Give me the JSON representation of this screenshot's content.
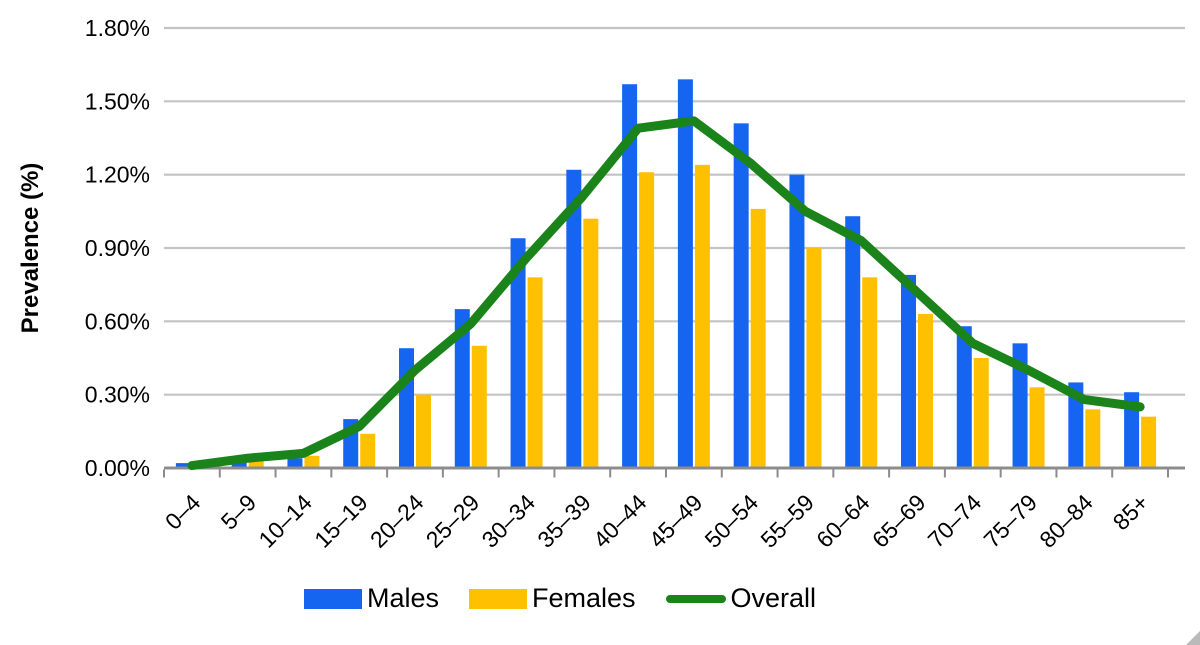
{
  "chart_data": {
    "type": "bar",
    "overlay": "line",
    "title": "",
    "xlabel": "",
    "ylabel": "Prevalence (%)",
    "categories": [
      "0–4",
      "5–9",
      "10–14",
      "15–19",
      "20–24",
      "25–29",
      "30–34",
      "35–39",
      "40–44",
      "45–49",
      "50–54",
      "55–59",
      "60–64",
      "65–69",
      "70–74",
      "75–79",
      "80–84",
      "85+"
    ],
    "series": [
      {
        "name": "Males",
        "type": "bar",
        "color": "#1565F0",
        "values": [
          0.02,
          0.03,
          0.04,
          0.2,
          0.49,
          0.65,
          0.94,
          1.22,
          1.57,
          1.59,
          1.41,
          1.2,
          1.03,
          0.79,
          0.58,
          0.51,
          0.35,
          0.31
        ]
      },
      {
        "name": "Females",
        "type": "bar",
        "color": "#FFC000",
        "values": [
          0.01,
          0.04,
          0.05,
          0.14,
          0.3,
          0.5,
          0.78,
          1.02,
          1.21,
          1.24,
          1.06,
          0.9,
          0.78,
          0.63,
          0.45,
          0.33,
          0.24,
          0.21
        ]
      },
      {
        "name": "Overall",
        "type": "line",
        "color": "#1A831A",
        "values": [
          0.01,
          0.04,
          0.06,
          0.17,
          0.4,
          0.59,
          0.86,
          1.11,
          1.39,
          1.42,
          1.25,
          1.05,
          0.93,
          0.72,
          0.51,
          0.4,
          0.28,
          0.25
        ]
      }
    ],
    "ylim": [
      0,
      1.8
    ],
    "y_tick_values": [
      0,
      0.3,
      0.6,
      0.9,
      1.2,
      1.5,
      1.8
    ],
    "y_ticks": [
      "0.00%",
      "0.30%",
      "0.60%",
      "0.90%",
      "1.20%",
      "1.50%",
      "1.80%"
    ],
    "grid": "horizontal",
    "legend_position": "bottom",
    "colors": {
      "gridline": "#C3C3C3",
      "axis": "#8C8C8C",
      "text": "#000000"
    }
  }
}
